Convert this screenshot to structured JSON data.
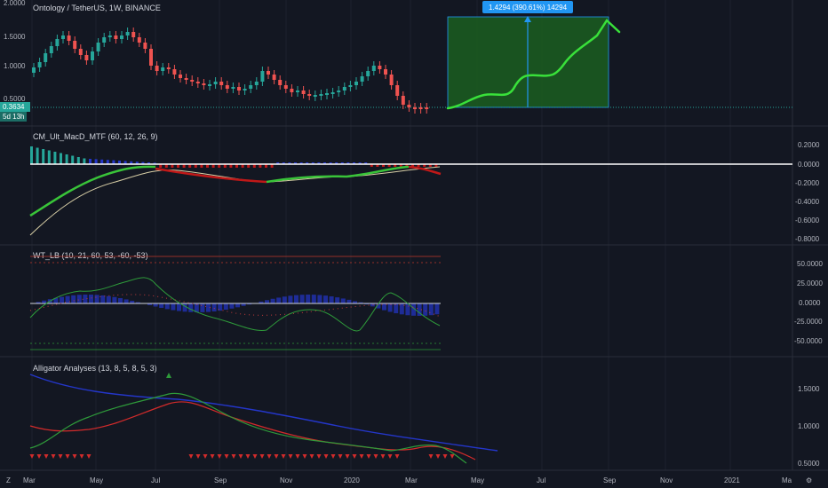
{
  "header": {
    "symbol_title": "Ontology / TetherUS, 1W, BINANCE"
  },
  "price_scale": {
    "ticks": [
      "2.0000",
      "1.5000",
      "1.0000",
      "0.5000"
    ],
    "last_price": "0.3634",
    "countdown": "5d 13h"
  },
  "measure_tool": {
    "label": "1.4294 (390.61%) 14294"
  },
  "panes": {
    "macd": {
      "title": "CM_Ult_MacD_MTF (60, 12, 26, 9)",
      "ticks": [
        "0.2000",
        "0.0000",
        "-0.2000",
        "-0.4000",
        "-0.6000",
        "-0.8000"
      ]
    },
    "wt": {
      "title": "WT_LB (10, 21, 60, 53, -60, -53)",
      "ticks": [
        "50.0000",
        "25.0000",
        "0.0000",
        "-25.0000",
        "-50.0000"
      ]
    },
    "alligator": {
      "title": "Alligator Analyses (13, 8, 5, 8, 5, 3)",
      "ticks": [
        "1.5000",
        "1.0000",
        "0.5000"
      ]
    }
  },
  "time_axis": {
    "labels": [
      "Mar",
      "May",
      "Jul",
      "Sep",
      "Nov",
      "2020",
      "Mar",
      "May",
      "Jul",
      "Sep",
      "Nov",
      "2021",
      "Ma"
    ]
  },
  "corner_buttons": {
    "z": "Z",
    "gear": "⚙"
  },
  "colors": {
    "bg": "#131722",
    "up": "#26a69a",
    "down": "#ef5350",
    "grid": "#1e222d",
    "text": "#b2b5be",
    "measure": "#2196f3",
    "measure_fill": "#1b5e20",
    "projection": "#39e03a"
  }
}
